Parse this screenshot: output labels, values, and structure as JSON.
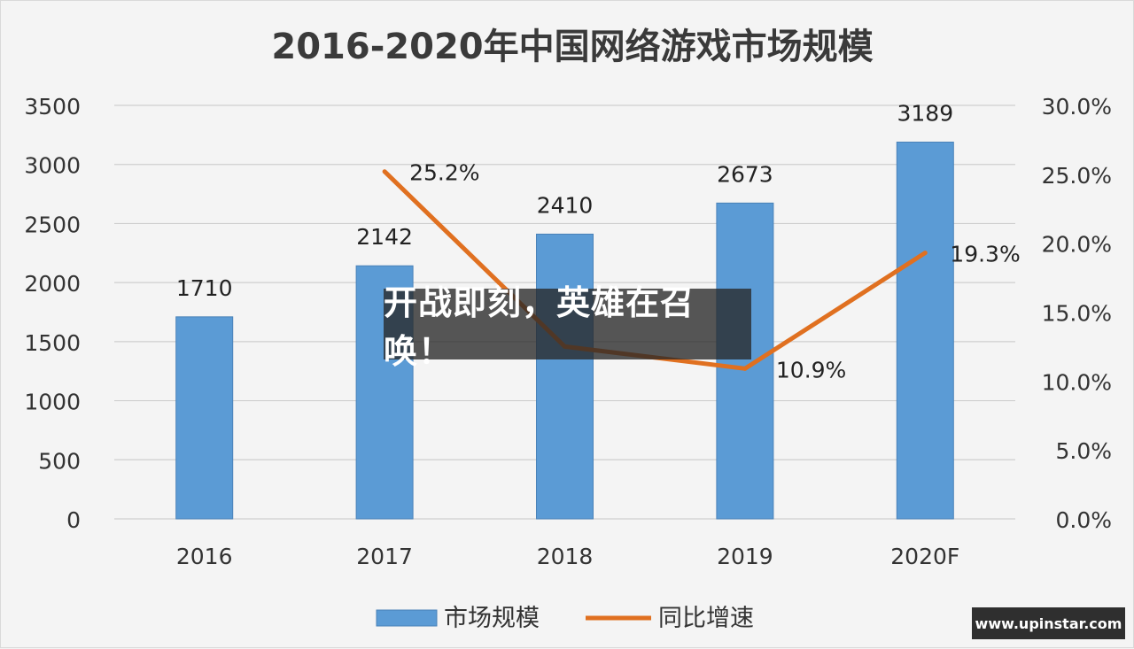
{
  "chart_data": {
    "type": "bar",
    "title": "2016-2020年中国网络游戏市场规模",
    "categories": [
      "2016",
      "2017",
      "2018",
      "2019",
      "2020F"
    ],
    "series": [
      {
        "name": "市场规模",
        "type": "bar",
        "axis": "left",
        "values": [
          1710,
          2142,
          2410,
          2673,
          3189
        ],
        "labels": [
          "1710",
          "2142",
          "2410",
          "2673",
          "3189"
        ],
        "color": "#5b9bd5"
      },
      {
        "name": "同比增速",
        "type": "line",
        "axis": "right",
        "values": [
          null,
          25.2,
          12.5,
          10.9,
          19.3
        ],
        "labels": [
          "",
          "25.2%",
          "",
          "10.9%",
          "19.3%"
        ],
        "color": "#e07020"
      }
    ],
    "left_axis": {
      "ylim": [
        0,
        3500
      ],
      "ticks": [
        "0",
        "500",
        "1000",
        "1500",
        "2000",
        "2500",
        "3000",
        "3500"
      ]
    },
    "right_axis": {
      "ylim": [
        0,
        30
      ],
      "ticks": [
        "0.0%",
        "5.0%",
        "10.0%",
        "15.0%",
        "20.0%",
        "25.0%",
        "30.0%"
      ]
    },
    "grid": true,
    "legend_position": "bottom"
  },
  "overlay": {
    "text": "开战即刻，英雄在召唤！"
  },
  "watermark": {
    "text": "www.upinstar.com"
  }
}
